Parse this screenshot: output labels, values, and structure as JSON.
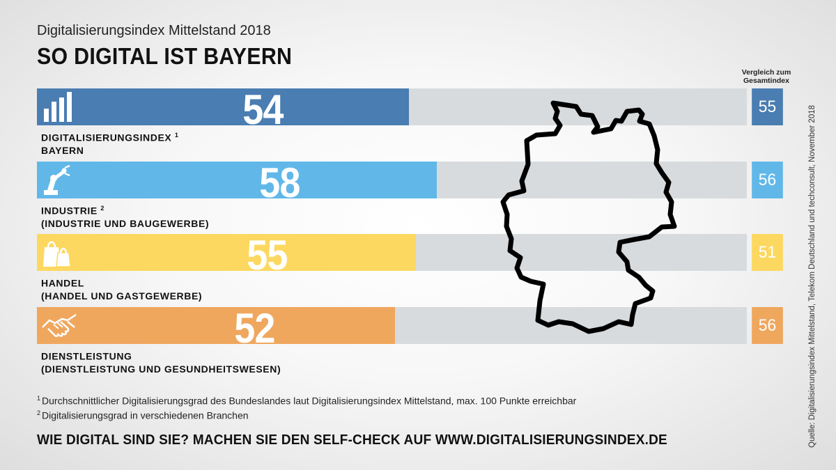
{
  "header": {
    "subtitle": "Digitalisierungsindex Mittelstand 2018",
    "title": "SO DIGITAL IST BAYERN",
    "compare_label": "Vergleich zum Gesamtindex"
  },
  "chart_data": {
    "type": "bar",
    "orientation": "horizontal",
    "title": "SO DIGITAL IST BAYERN",
    "subtitle": "Digitalisierungsindex Mittelstand 2018",
    "xlim": [
      0,
      100
    ],
    "categories": [
      "DIGITALISIERUNGSINDEX BAYERN",
      "INDUSTRIE (INDUSTRIE UND BAUGEWERBE)",
      "HANDEL (HANDEL UND GASTGEWERBE)",
      "DIENSTLEISTUNG (DIENSTLEISTUNG UND GESUNDHEITSWESEN)"
    ],
    "series": [
      {
        "name": "",
        "values": [
          54,
          58,
          55,
          52
        ]
      },
      {
        "name": "Vergleich zum Gesamtindex",
        "values": [
          55,
          56,
          51,
          56
        ]
      }
    ],
    "colors": [
      "#4a7db1",
      "#61b8e8",
      "#fcd860",
      "#efa75e"
    ],
    "track_color": "#d7dbde"
  },
  "rows": [
    {
      "line1": "DIGITALISIERUNGSINDEX",
      "sup": "1",
      "line2": "BAYERN",
      "value": "54",
      "compare": "55",
      "icon": "bar-chart-icon"
    },
    {
      "line1": "INDUSTRIE",
      "sup": "2",
      "line2": "(INDUSTRIE UND BAUGEWERBE)",
      "value": "58",
      "compare": "56",
      "icon": "robot-arm-icon"
    },
    {
      "line1": "HANDEL",
      "sup": "",
      "line2": "(HANDEL UND GASTGEWERBE)",
      "value": "55",
      "compare": "51",
      "icon": "shopping-bags-icon"
    },
    {
      "line1": "DIENSTLEISTUNG",
      "sup": "",
      "line2": "(DIENSTLEISTUNG UND GESUNDHEITSWESEN)",
      "value": "52",
      "compare": "56",
      "icon": "handshake-icon"
    }
  ],
  "footnotes": {
    "fn1_mark": "1",
    "fn1": "Durchschnittlicher Digitalisierungsgrad des Bundeslandes laut Digitalisierungsindex Mittelstand, max. 100 Punkte erreichbar",
    "fn2_mark": "2",
    "fn2": "Digitalisierungsgrad in verschiedenen Branchen"
  },
  "cta": "WIE DIGITAL SIND SIE? MACHEN SIE DEN SELF-CHECK AUF WWW.DIGITALISIERUNGSINDEX.DE",
  "source": "Quelle: Digitalisierungsindex Mittelstand, Telekom Deutschland und techconsult, November 2018",
  "map": {
    "icon": "germany-map-icon"
  }
}
